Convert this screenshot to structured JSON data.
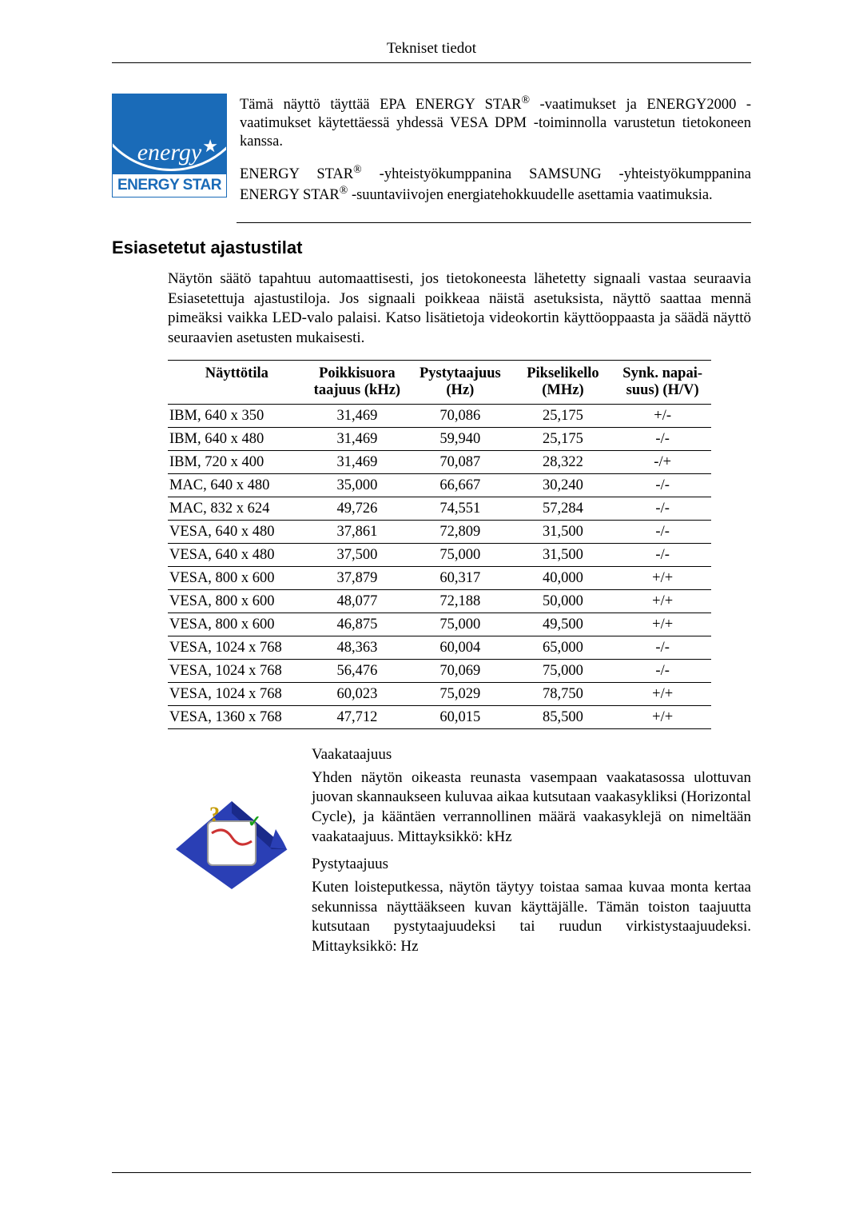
{
  "header": {
    "title": "Tekniset tiedot"
  },
  "energy_logo": {
    "cursive": "energy",
    "bottom_label": "ENERGY STAR",
    "bg_color": "#1a6bb8",
    "text_color": "#ffffff"
  },
  "intro": {
    "p1_before": "Tämä näyttö täyttää EPA ENERGY STAR",
    "p1_after": " -vaatimukset ja ENERGY2000 -vaatimukset käytettäessä yhdessä VESA DPM -toiminnolla varustetun tietokoneen kanssa.",
    "p2_before": "ENERGY STAR",
    "p2_mid": " -yhteistyökumppanina SAMSUNG -yhteistyökumppanina ENERGY STAR",
    "p2_after": " -suuntaviivojen energiatehokkuudelle asettamia vaatimuksia.",
    "reg_mark": "®"
  },
  "section_heading": "Esiasetetut ajastustilat",
  "section_body": "Näytön säätö tapahtuu automaattisesti, jos tietokoneesta lähetetty signaali vastaa seuraavia Esiasetettuja ajastustiloja. Jos signaali poikkeaa näistä asetuksista, näyttö saattaa mennä pimeäksi vaikka LED-valo palaisi. Katso lisätietoja videokortin käyttöoppaasta ja säädä näyttö seuraavien asetusten mukaisesti.",
  "timing_table": {
    "columns": [
      {
        "line1": "Näyttötila",
        "line2": ""
      },
      {
        "line1": "Poikkisuora",
        "line2": "taajuus (kHz)"
      },
      {
        "line1": "Pystytaajuus",
        "line2": "(Hz)"
      },
      {
        "line1": "Pikselikello",
        "line2": "(MHz)"
      },
      {
        "line1": "Synk. napai-",
        "line2": "suus) (H/V)"
      }
    ],
    "rows": [
      [
        "IBM, 640 x 350",
        "31,469",
        "70,086",
        "25,175",
        "+/-"
      ],
      [
        "IBM, 640 x 480",
        "31,469",
        "59,940",
        "25,175",
        "-/-"
      ],
      [
        "IBM, 720 x 400",
        "31,469",
        "70,087",
        "28,322",
        "-/+"
      ],
      [
        "MAC, 640 x 480",
        "35,000",
        "66,667",
        "30,240",
        "-/-"
      ],
      [
        "MAC, 832 x 624",
        "49,726",
        "74,551",
        "57,284",
        "-/-"
      ],
      [
        "VESA, 640 x 480",
        "37,861",
        "72,809",
        "31,500",
        "-/-"
      ],
      [
        "VESA, 640 x 480",
        "37,500",
        "75,000",
        "31,500",
        "-/-"
      ],
      [
        "VESA, 800 x 600",
        "37,879",
        "60,317",
        "40,000",
        "+/+"
      ],
      [
        "VESA, 800 x 600",
        "48,077",
        "72,188",
        "50,000",
        "+/+"
      ],
      [
        "VESA, 800 x 600",
        "46,875",
        "75,000",
        "49,500",
        "+/+"
      ],
      [
        "VESA, 1024 x 768",
        "48,363",
        "60,004",
        "65,000",
        "-/-"
      ],
      [
        "VESA, 1024 x 768",
        "56,476",
        "70,069",
        "75,000",
        "-/-"
      ],
      [
        "VESA, 1024 x 768",
        "60,023",
        "75,029",
        "78,750",
        "+/+"
      ],
      [
        "VESA, 1360 x 768",
        "47,712",
        "60,015",
        "85,500",
        "+/+"
      ]
    ],
    "col_widths": [
      "180px",
      "125px",
      "125px",
      "125px",
      "125px"
    ],
    "border_color": "#000000"
  },
  "definitions": {
    "d1_title": "Vaakataajuus",
    "d1_body": "Yhden näytön oikeasta reunasta vasempaan vaakatasossa ulottuvan juovan skannaukseen kuluvaa aikaa kutsutaan vaakasykliksi (Horizontal Cycle), ja kääntäen verrannollinen määrä vaakasyklejä on nimeltään vaakataajuus. Mittayksikkö: kHz",
    "d2_title": "Pystytaajuus",
    "d2_body": "Kuten loisteputkessa, näytön täytyy toistaa samaa kuvaa monta kertaa sekunnissa näyttääkseen kuvan käyttäjälle. Tämän toiston taajuutta kutsutaan pystytaajuudeksi tai ruudun virkistystaajuudeksi. Mittayksikkö: Hz"
  }
}
